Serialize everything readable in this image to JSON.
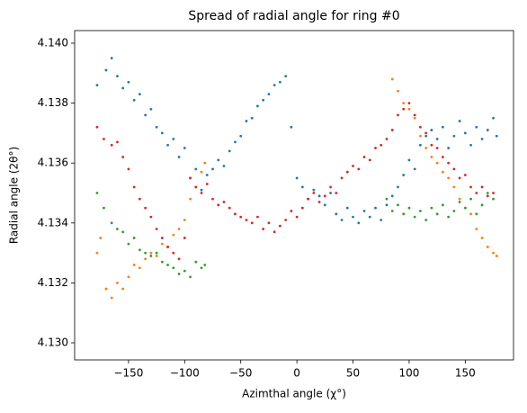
{
  "chart_data": {
    "type": "scatter",
    "title": "Spread of radial angle for ring #0",
    "x_label": "Azimthal angle (χ°)",
    "y_label": "Radial angle (2θ°)",
    "xlim": [
      -198,
      193
    ],
    "ylim": [
      4.12943,
      4.14042
    ],
    "xticks": [
      {
        "value": -150,
        "label": "−150"
      },
      {
        "value": -100,
        "label": "−100"
      },
      {
        "value": -50,
        "label": "−50"
      },
      0,
      50,
      100,
      150
    ],
    "yticks": [
      {
        "value": 4.13,
        "label": "4.130"
      },
      {
        "value": 4.132,
        "label": "4.132"
      },
      {
        "value": 4.134,
        "label": "4.134"
      },
      {
        "value": 4.136,
        "label": "4.136"
      },
      {
        "value": 4.138,
        "label": "4.138"
      },
      {
        "value": 4.14,
        "label": "4.140"
      }
    ],
    "series": [
      {
        "color": "#1f77b4",
        "x": [
          -178,
          -170,
          -165,
          -160,
          -155,
          -150,
          -145,
          -140,
          -135,
          -130,
          -125,
          -120,
          -115,
          -110,
          -105,
          -100,
          -95,
          -90,
          -85,
          -80,
          -75,
          -70,
          -65,
          -60,
          -55,
          -50,
          -45,
          -40,
          -35,
          -30,
          -25,
          -20,
          -15,
          -10,
          -5,
          0,
          5,
          10,
          15,
          20,
          25,
          30,
          35,
          40,
          45,
          50,
          55,
          60,
          65,
          70,
          75,
          80,
          85,
          90,
          95,
          100,
          105,
          110,
          115,
          120,
          125,
          130,
          135,
          140,
          145,
          150,
          155,
          160,
          165,
          170,
          175,
          178
        ],
        "values": [
          4.1386,
          4.1391,
          4.1395,
          4.1389,
          4.1385,
          4.1387,
          4.1381,
          4.1383,
          4.1376,
          4.1378,
          4.1372,
          4.137,
          4.1366,
          4.1368,
          4.1362,
          4.1365,
          4.1355,
          4.1358,
          4.1351,
          4.1356,
          4.1358,
          4.1361,
          4.1359,
          4.1364,
          4.1367,
          4.1369,
          4.1374,
          4.1375,
          4.1379,
          4.1381,
          4.1383,
          4.1386,
          4.1387,
          4.1389,
          4.1372,
          4.1355,
          4.1352,
          4.1348,
          4.1351,
          4.1349,
          4.1346,
          4.135,
          4.1343,
          4.1341,
          4.1345,
          4.1342,
          4.134,
          4.1344,
          4.1342,
          4.1345,
          4.1341,
          4.1346,
          4.1349,
          4.1352,
          4.1356,
          4.1361,
          4.1358,
          4.1366,
          4.1369,
          4.1371,
          4.1368,
          4.1372,
          4.1365,
          4.1369,
          4.1374,
          4.137,
          4.1366,
          4.1372,
          4.1368,
          4.1371,
          4.1375,
          4.1369
        ]
      },
      {
        "color": "#ff7f0e",
        "x": [
          -178,
          -175,
          -170,
          -165,
          -160,
          -155,
          -150,
          -145,
          -140,
          -135,
          -130,
          -125,
          -120,
          -115,
          -110,
          -105,
          -100,
          -95,
          -90,
          -85,
          -82,
          85,
          90,
          95,
          100,
          105,
          110,
          115,
          120,
          125,
          130,
          135,
          140,
          145,
          150,
          155,
          160,
          165,
          170,
          175,
          178
        ],
        "values": [
          4.133,
          4.1335,
          4.1318,
          4.1315,
          4.132,
          4.1318,
          4.1322,
          4.1326,
          4.1325,
          4.1328,
          4.133,
          4.1329,
          4.1333,
          4.1332,
          4.1336,
          4.1338,
          4.1341,
          4.1348,
          4.1352,
          4.1357,
          4.136,
          4.1388,
          4.1384,
          4.138,
          4.1378,
          4.1375,
          4.1369,
          4.1365,
          4.1362,
          4.136,
          4.1357,
          4.1355,
          4.1352,
          4.1348,
          4.1345,
          4.1343,
          4.1338,
          4.1335,
          4.1332,
          4.133,
          4.1329
        ]
      },
      {
        "color": "#2ca02c",
        "x": [
          -178,
          -172,
          -165,
          -160,
          -155,
          -150,
          -145,
          -140,
          -135,
          -130,
          -125,
          -120,
          -115,
          -110,
          -105,
          -100,
          -95,
          -90,
          -85,
          -82,
          80,
          85,
          90,
          95,
          100,
          105,
          110,
          115,
          120,
          125,
          130,
          135,
          140,
          145,
          150,
          155,
          160,
          165,
          170,
          175
        ],
        "values": [
          4.135,
          4.1345,
          4.134,
          4.1338,
          4.1337,
          4.1333,
          4.1335,
          4.1331,
          4.133,
          4.1329,
          4.133,
          4.1327,
          4.1326,
          4.1325,
          4.1323,
          4.1324,
          4.1322,
          4.1327,
          4.1325,
          4.1326,
          4.1348,
          4.1344,
          4.1346,
          4.1343,
          4.1345,
          4.1342,
          4.1344,
          4.1341,
          4.1345,
          4.1343,
          4.1346,
          4.1342,
          4.1344,
          4.1347,
          4.1345,
          4.1348,
          4.1343,
          4.1346,
          4.135,
          4.1348
        ]
      },
      {
        "color": "#d62728",
        "x": [
          -178,
          -172,
          -165,
          -160,
          -155,
          -150,
          -145,
          -140,
          -135,
          -130,
          -125,
          -120,
          -115,
          -110,
          -105,
          -100,
          -95,
          -90,
          -85,
          -80,
          -75,
          -70,
          -65,
          -60,
          -55,
          -50,
          -45,
          -40,
          -35,
          -30,
          -25,
          -20,
          -15,
          -10,
          -5,
          0,
          5,
          10,
          15,
          20,
          25,
          30,
          35,
          40,
          45,
          50,
          55,
          60,
          65,
          70,
          75,
          80,
          85,
          90,
          95,
          100,
          105,
          110,
          115,
          120,
          125,
          130,
          135,
          140,
          145,
          150,
          155,
          160,
          165,
          170,
          175
        ],
        "values": [
          4.1372,
          4.1368,
          4.1366,
          4.1367,
          4.1362,
          4.1358,
          4.1352,
          4.1348,
          4.1345,
          4.1342,
          4.1338,
          4.1335,
          4.1332,
          4.133,
          4.1328,
          4.1335,
          4.1355,
          4.1352,
          4.135,
          4.1353,
          4.1348,
          4.1346,
          4.1347,
          4.1345,
          4.1343,
          4.1342,
          4.1341,
          4.134,
          4.1342,
          4.1338,
          4.134,
          4.1337,
          4.1339,
          4.1341,
          4.1344,
          4.1342,
          4.1345,
          4.1348,
          4.135,
          4.1347,
          4.1349,
          4.1352,
          4.135,
          4.1355,
          4.1357,
          4.1359,
          4.1358,
          4.1362,
          4.1361,
          4.1365,
          4.1366,
          4.1368,
          4.1371,
          4.1376,
          4.1378,
          4.138,
          4.1376,
          4.1372,
          4.137,
          4.1366,
          4.1365,
          4.1362,
          4.136,
          4.1358,
          4.1355,
          4.1356,
          4.1352,
          4.135,
          4.1352,
          4.1349,
          4.135
        ]
      }
    ]
  }
}
